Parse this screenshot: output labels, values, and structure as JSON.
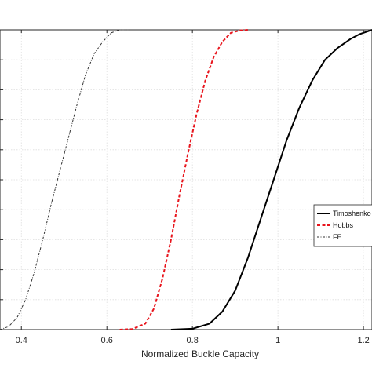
{
  "chart_data": {
    "type": "line",
    "xlabel": "Normalized Buckle Capacity",
    "ylabel": "",
    "title": "",
    "xlim": [
      0.35,
      1.22
    ],
    "ylim": [
      0,
      1
    ],
    "xticks": [
      0.4,
      0.6,
      0.8,
      1,
      1.2
    ],
    "xtick_labels": [
      "0.4",
      "0.6",
      "0.8",
      "1",
      "1.2"
    ],
    "grid": true,
    "legend_position": "right",
    "series": [
      {
        "name": "Timoshenko",
        "color": "#000000",
        "style": "solid",
        "x": [
          0.75,
          0.8,
          0.84,
          0.87,
          0.9,
          0.93,
          0.96,
          0.99,
          1.02,
          1.05,
          1.08,
          1.11,
          1.14,
          1.17,
          1.19,
          1.21,
          1.22
        ],
        "y": [
          0.0,
          0.003,
          0.02,
          0.06,
          0.13,
          0.24,
          0.37,
          0.5,
          0.63,
          0.74,
          0.83,
          0.9,
          0.94,
          0.97,
          0.985,
          0.995,
          1.0
        ]
      },
      {
        "name": "Hobbs",
        "color": "#e8141c",
        "style": "dashed",
        "x": [
          0.63,
          0.66,
          0.69,
          0.71,
          0.73,
          0.75,
          0.77,
          0.78,
          0.79,
          0.81,
          0.83,
          0.85,
          0.87,
          0.89,
          0.91,
          0.93
        ],
        "y": [
          0.0,
          0.002,
          0.02,
          0.07,
          0.17,
          0.3,
          0.45,
          0.52,
          0.59,
          0.72,
          0.83,
          0.91,
          0.96,
          0.99,
          0.998,
          1.0
        ]
      },
      {
        "name": "FE",
        "color": "#333333",
        "style": "dashdot",
        "x": [
          0.35,
          0.37,
          0.39,
          0.41,
          0.43,
          0.45,
          0.47,
          0.49,
          0.51,
          0.53,
          0.55,
          0.57,
          0.59,
          0.61,
          0.63,
          0.65
        ],
        "y": [
          0.0,
          0.01,
          0.04,
          0.1,
          0.19,
          0.3,
          0.42,
          0.53,
          0.64,
          0.75,
          0.85,
          0.92,
          0.96,
          0.99,
          1.0,
          1.0
        ]
      }
    ]
  }
}
